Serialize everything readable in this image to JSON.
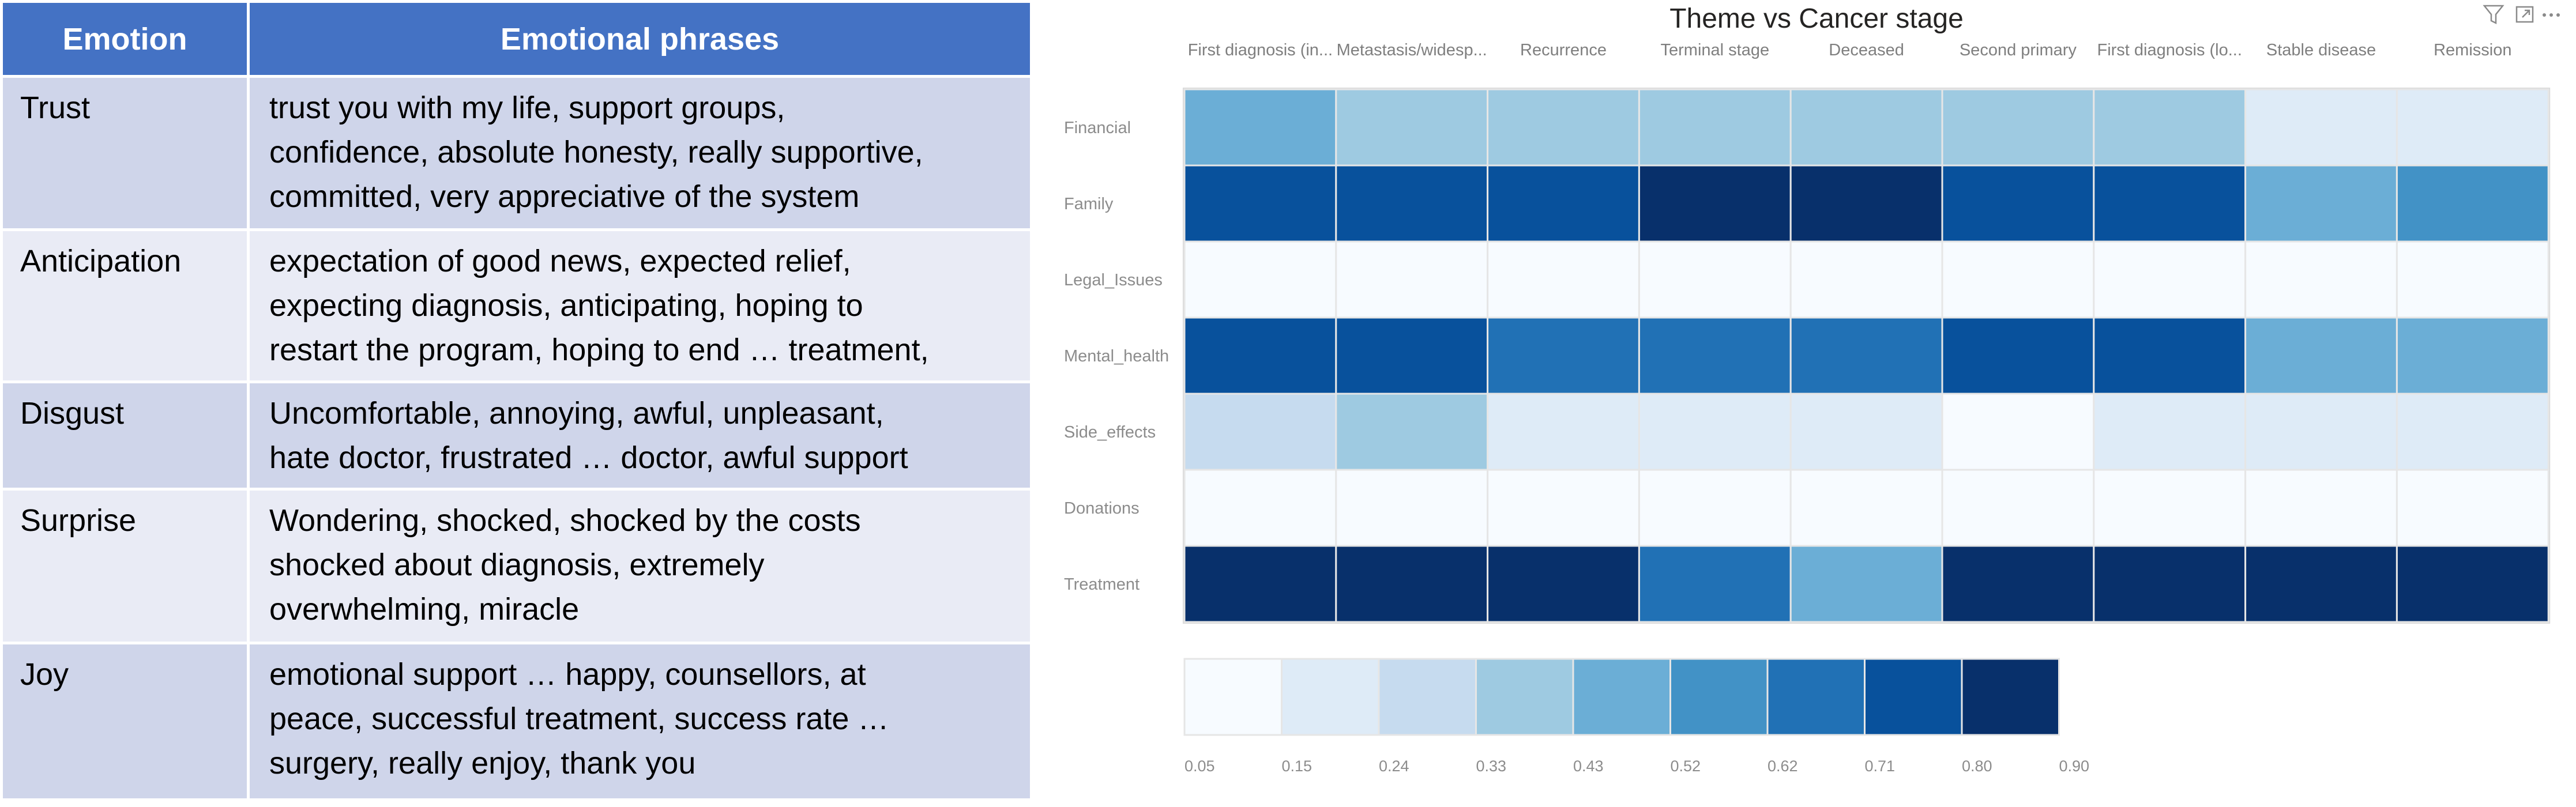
{
  "table": {
    "headers": [
      "Emotion",
      "Emotional phrases"
    ],
    "rows": [
      {
        "emotion": "Trust",
        "phrases": [
          "trust you with my life, support groups,",
          "confidence, absolute honesty, really supportive,",
          "committed, very appreciative of the system"
        ]
      },
      {
        "emotion": "Anticipation",
        "phrases": [
          "expectation of good news, expected relief,",
          "expecting diagnosis, anticipating, hoping to",
          "restart the program, hoping to end … treatment,"
        ]
      },
      {
        "emotion": "Disgust",
        "phrases": [
          "Uncomfortable, annoying, awful, unpleasant,",
          "hate doctor, frustrated … doctor, awful support"
        ]
      },
      {
        "emotion": "Surprise",
        "phrases": [
          "Wondering, shocked, shocked by the costs",
          "shocked about diagnosis, extremely",
          "overwhelming, miracle"
        ]
      },
      {
        "emotion": "Joy",
        "phrases": [
          "emotional support … happy, counsellors, at",
          "peace, successful treatment, success rate …",
          "surgery, really enjoy, thank you"
        ]
      }
    ],
    "colors": {
      "header": "#4472c4",
      "odd": "#cfd5ea",
      "even": "#e9ebf5"
    }
  },
  "chart_icons": [
    "filter-icon",
    "focus-mode-icon",
    "more-options-icon"
  ],
  "chart_data": {
    "type": "heatmap",
    "title": "Theme vs Cancer stage",
    "x_labels": [
      "First diagnosis (in...",
      "Metastasis/widesp...",
      "Recurrence",
      "Terminal stage",
      "Deceased",
      "Second primary",
      "First diagnosis (lo...",
      "Stable disease",
      "Remission"
    ],
    "y_labels": [
      "Financial",
      "Family",
      "Legal_Issues",
      "Mental_health",
      "Side_effects",
      "Donations",
      "Treatment"
    ],
    "values": [
      [
        0.45,
        0.35,
        0.35,
        0.35,
        0.35,
        0.35,
        0.38,
        0.22,
        0.22
      ],
      [
        0.75,
        0.72,
        0.72,
        0.88,
        0.88,
        0.72,
        0.75,
        0.52,
        0.6
      ],
      [
        0.07,
        0.13,
        0.07,
        0.1,
        0.1,
        0.06,
        0.07,
        0.06,
        0.06
      ],
      [
        0.73,
        0.72,
        0.62,
        0.62,
        0.62,
        0.72,
        0.75,
        0.52,
        0.52
      ],
      [
        0.33,
        0.34,
        0.22,
        0.2,
        0.2,
        0.13,
        0.2,
        0.18,
        0.18
      ],
      [
        0.13,
        0.13,
        0.07,
        0.1,
        0.1,
        0.05,
        0.11,
        0.07,
        0.07
      ],
      [
        0.87,
        0.86,
        0.86,
        0.62,
        0.45,
        0.86,
        0.86,
        0.87,
        0.87
      ]
    ],
    "legend": {
      "ticks": [
        "0.05",
        "0.15",
        "0.24",
        "0.33",
        "0.43",
        "0.52",
        "0.62",
        "0.71",
        "0.80",
        "0.90"
      ],
      "colors": [
        "#f7fbff",
        "#deebf7",
        "#c6dbef",
        "#9ecae1",
        "#6baed6",
        "#4292c6",
        "#2171b5",
        "#08519c",
        "#08306b"
      ],
      "placement": "bottom"
    },
    "vmin": 0.05,
    "vmax": 0.9
  }
}
